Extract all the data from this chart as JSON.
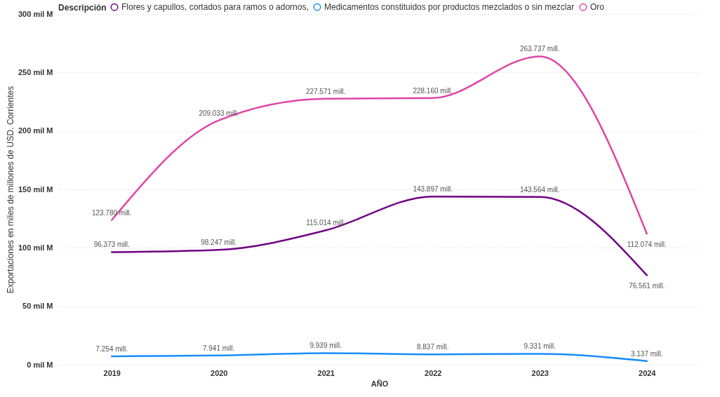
{
  "chart_data": {
    "type": "line",
    "xlabel": "AÑO",
    "ylabel": "Exportaciones en miles de millones de USD. Corrientes",
    "legend_title": "Descripción",
    "legend": "top left",
    "grid": "y",
    "categories": [
      "2019",
      "2020",
      "2021",
      "2022",
      "2023",
      "2024"
    ],
    "ylim": [
      0,
      300
    ],
    "yticks": [
      {
        "value": 0,
        "label": "0 mil M"
      },
      {
        "value": 50,
        "label": "50 mil M"
      },
      {
        "value": 100,
        "label": "100 mil M"
      },
      {
        "value": 150,
        "label": "150 mil M"
      },
      {
        "value": 200,
        "label": "200 mil M"
      },
      {
        "value": 250,
        "label": "250 mil M"
      },
      {
        "value": 300,
        "label": "300 mil M"
      }
    ],
    "series": [
      {
        "name": "Flores y capullos, cortados para ramos o adornos,",
        "color": "#700085",
        "values": [
          96.373,
          98.247,
          115.014,
          143.897,
          143.564,
          76.561
        ],
        "value_labels": [
          "96.373 mill.",
          "98.247 mill.",
          "115.014 mill.",
          "143.897 mill.",
          "143.564 mill.",
          "76.561 mill."
        ]
      },
      {
        "name": "Medicamentos constituidos por productos mezclados o sin mezclar",
        "color": "#1a8cff",
        "values": [
          7.254,
          7.941,
          9.939,
          8.837,
          9.331,
          3.137
        ],
        "value_labels": [
          "7.254 mill.",
          "7.941 mill.",
          "9.939 mill.",
          "8.837 mill.",
          "9.331 mill.",
          "3.137 mill."
        ]
      },
      {
        "name": "Oro",
        "color": "#e044a7",
        "values": [
          123.78,
          209.033,
          227.571,
          228.16,
          263.737,
          112.074
        ],
        "value_labels": [
          "123.780 mill.",
          "209.033 mill.",
          "227.571 mill.",
          "228.160 mill.",
          "263.737 mill.",
          "112.074 mill."
        ]
      }
    ]
  }
}
